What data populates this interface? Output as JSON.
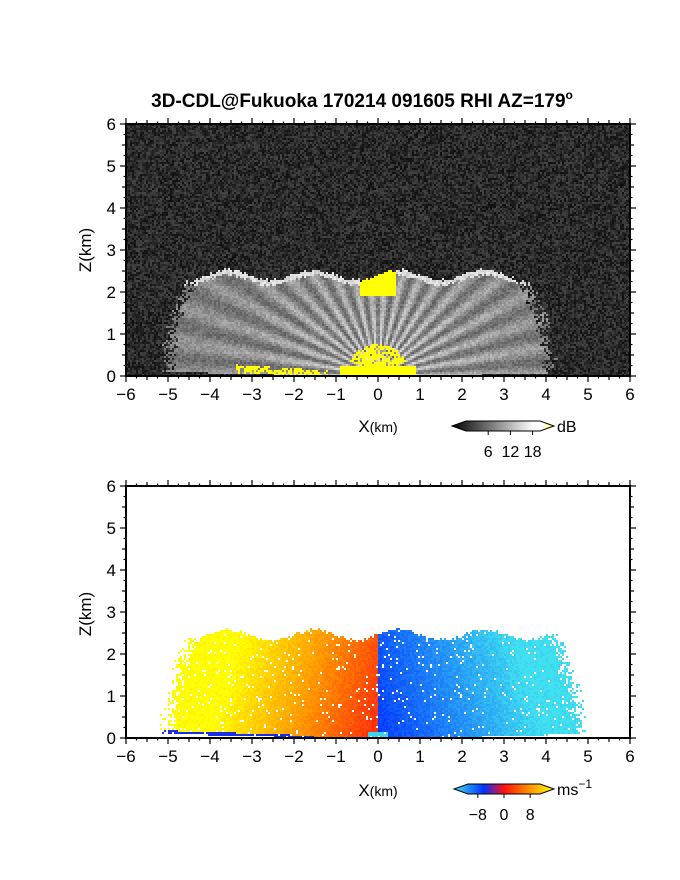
{
  "title": "3D-CDL@Fukuoka 170214 091605 RHI AZ=179",
  "title_sup": "o",
  "chart_data": [
    {
      "type": "heatmap",
      "name": "backscatter",
      "xlabel": "X",
      "xlabel_unit": "(km)",
      "ylabel": "Z(km)",
      "xlim": [
        -6,
        6
      ],
      "ylim": [
        0,
        6
      ],
      "xticks": [
        "-6",
        "-5",
        "-4",
        "-3",
        "-2",
        "-1",
        "0",
        "1",
        "2",
        "3",
        "4",
        "5",
        "6"
      ],
      "yticks": [
        "0",
        "1",
        "2",
        "3",
        "4",
        "5",
        "6"
      ],
      "colorbar": {
        "unit": "dB",
        "ticks": [
          "6",
          "12",
          "18"
        ],
        "tick_values": [
          6,
          12,
          18
        ],
        "range": [
          0,
          20
        ],
        "colors": [
          "#000000",
          "#ffffff",
          "#ffff00"
        ]
      },
      "echo_top_km": 2.4,
      "range_limit_left_km": -4.8,
      "range_limit_right_km": 3.9
    },
    {
      "type": "heatmap",
      "name": "doppler_velocity",
      "xlabel": "X",
      "xlabel_unit": "(km)",
      "ylabel": "Z(km)",
      "xlim": [
        -6,
        6
      ],
      "ylim": [
        0,
        6
      ],
      "xticks": [
        "-6",
        "-5",
        "-4",
        "-3",
        "-2",
        "-1",
        "0",
        "1",
        "2",
        "3",
        "4",
        "5",
        "6"
      ],
      "yticks": [
        "0",
        "1",
        "2",
        "3",
        "4",
        "5",
        "6"
      ],
      "colorbar": {
        "unit": "ms",
        "unit_sup": "−1",
        "ticks": [
          "−8",
          "0",
          "8"
        ],
        "tick_values": [
          -8,
          0,
          8
        ],
        "range": [
          -11,
          11
        ],
        "colors": [
          "#40e0f0",
          "#0030ff",
          "#ff1010",
          "#ff9000",
          "#ffff00"
        ]
      },
      "echo_top_km": 2.45,
      "range_limit_left_km": -4.8,
      "range_limit_right_km": 4.6
    }
  ]
}
